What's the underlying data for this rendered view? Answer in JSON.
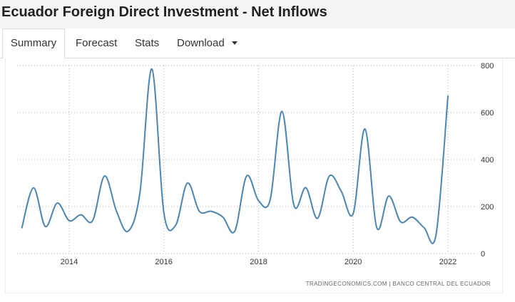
{
  "page": {
    "title": "Ecuador Foreign Direct Investment - Net Inflows"
  },
  "tabs": [
    {
      "label": "Summary",
      "active": true
    },
    {
      "label": "Forecast",
      "active": false
    },
    {
      "label": "Stats",
      "active": false
    },
    {
      "label": "Download",
      "active": false,
      "dropdown": true
    }
  ],
  "colors": {
    "line": "#4a86b4",
    "grid": "#b0b0b0"
  },
  "chart_data": {
    "type": "line",
    "title": "",
    "xlabel": "",
    "ylabel": "",
    "x_ticks": [
      "2014",
      "2016",
      "2018",
      "2020",
      "2022"
    ],
    "y_ticks": [
      0,
      200,
      400,
      600,
      800
    ],
    "ylim": [
      0,
      800
    ],
    "xlim": [
      "2013-01-01",
      "2022-08-01"
    ],
    "grid": true,
    "y_axis_side": "right",
    "series": [
      {
        "x": [
          "2013-01-01",
          "2013-04-01",
          "2013-07-01",
          "2013-10-01",
          "2014-01-01",
          "2014-04-01",
          "2014-07-01",
          "2014-10-01",
          "2015-01-01",
          "2015-04-01",
          "2015-07-01",
          "2015-10-01",
          "2016-01-01",
          "2016-04-01",
          "2016-07-01",
          "2016-10-01",
          "2017-01-01",
          "2017-04-01",
          "2017-07-01",
          "2017-10-01",
          "2018-01-01",
          "2018-04-01",
          "2018-07-01",
          "2018-10-01",
          "2019-01-01",
          "2019-04-01",
          "2019-07-01",
          "2019-10-01",
          "2020-01-01",
          "2020-04-01",
          "2020-07-01",
          "2020-10-01",
          "2021-01-01",
          "2021-04-01",
          "2021-07-01",
          "2021-10-01",
          "2022-01-01",
          "2022-04-01",
          "2022-07-01"
        ],
        "values": [
          110,
          280,
          115,
          215,
          140,
          165,
          140,
          330,
          180,
          95,
          260,
          785,
          175,
          120,
          300,
          180,
          180,
          155,
          95,
          330,
          225,
          230,
          605,
          205,
          280,
          150,
          330,
          265,
          170,
          530,
          110,
          245,
          135,
          155,
          110,
          80,
          670,
          null,
          null
        ]
      }
    ],
    "source": "TRADINGECONOMICS.COM  |  BANCO CENTRAL DEL ECUADOR"
  }
}
